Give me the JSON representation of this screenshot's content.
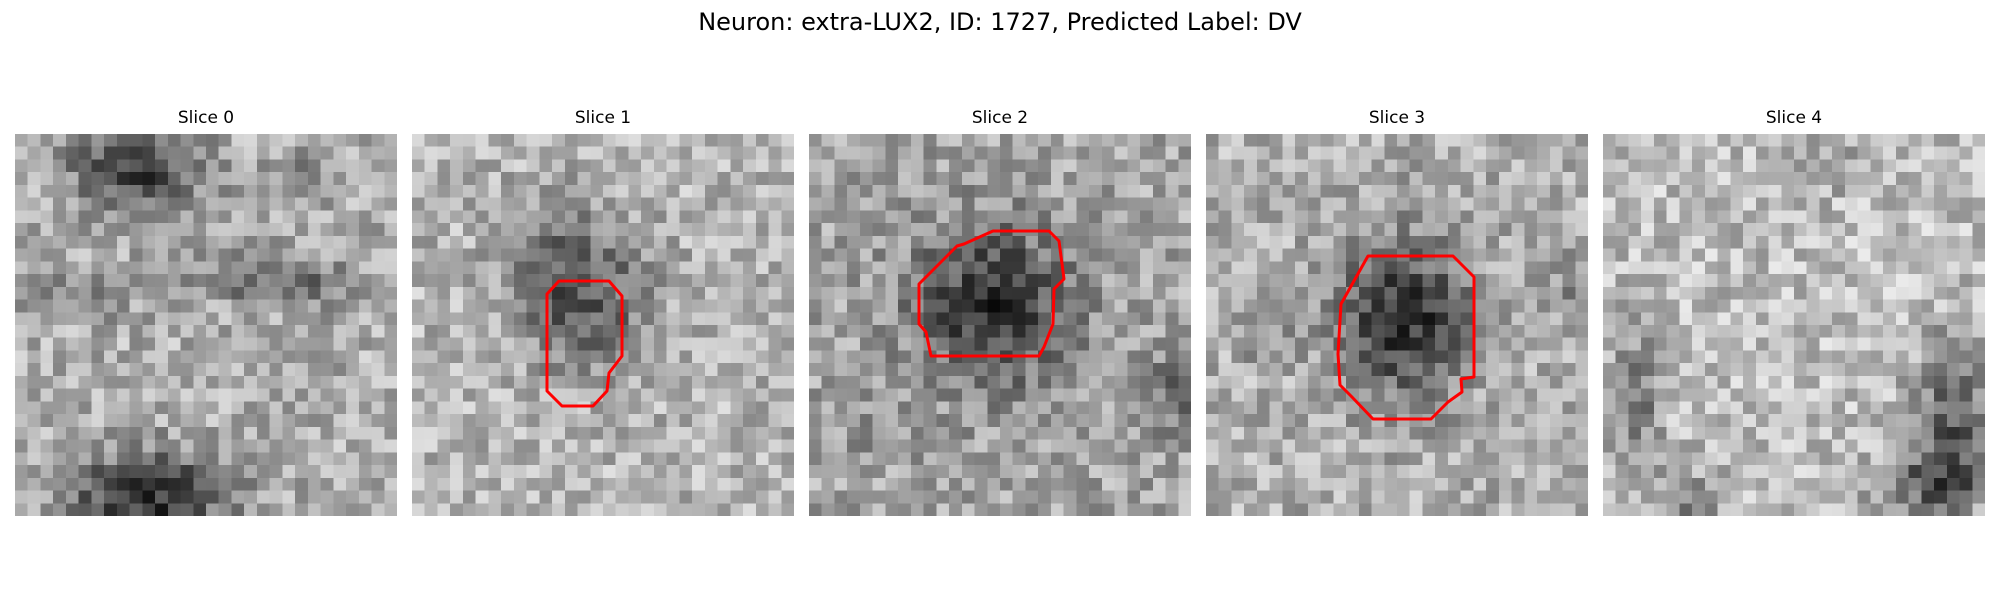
{
  "figure": {
    "title": "Neuron: extra-LUX2, ID: 1727, Predicted Label: DV"
  },
  "panels": [
    {
      "title": "Slice 0",
      "has_contour": false
    },
    {
      "title": "Slice 1",
      "has_contour": true
    },
    {
      "title": "Slice 2",
      "has_contour": true
    },
    {
      "title": "Slice 3",
      "has_contour": true
    },
    {
      "title": "Slice 4",
      "has_contour": false
    }
  ],
  "colors": {
    "contour": "#ff0000",
    "background": "#ffffff",
    "text": "#000000"
  },
  "colormap": "grayscale"
}
